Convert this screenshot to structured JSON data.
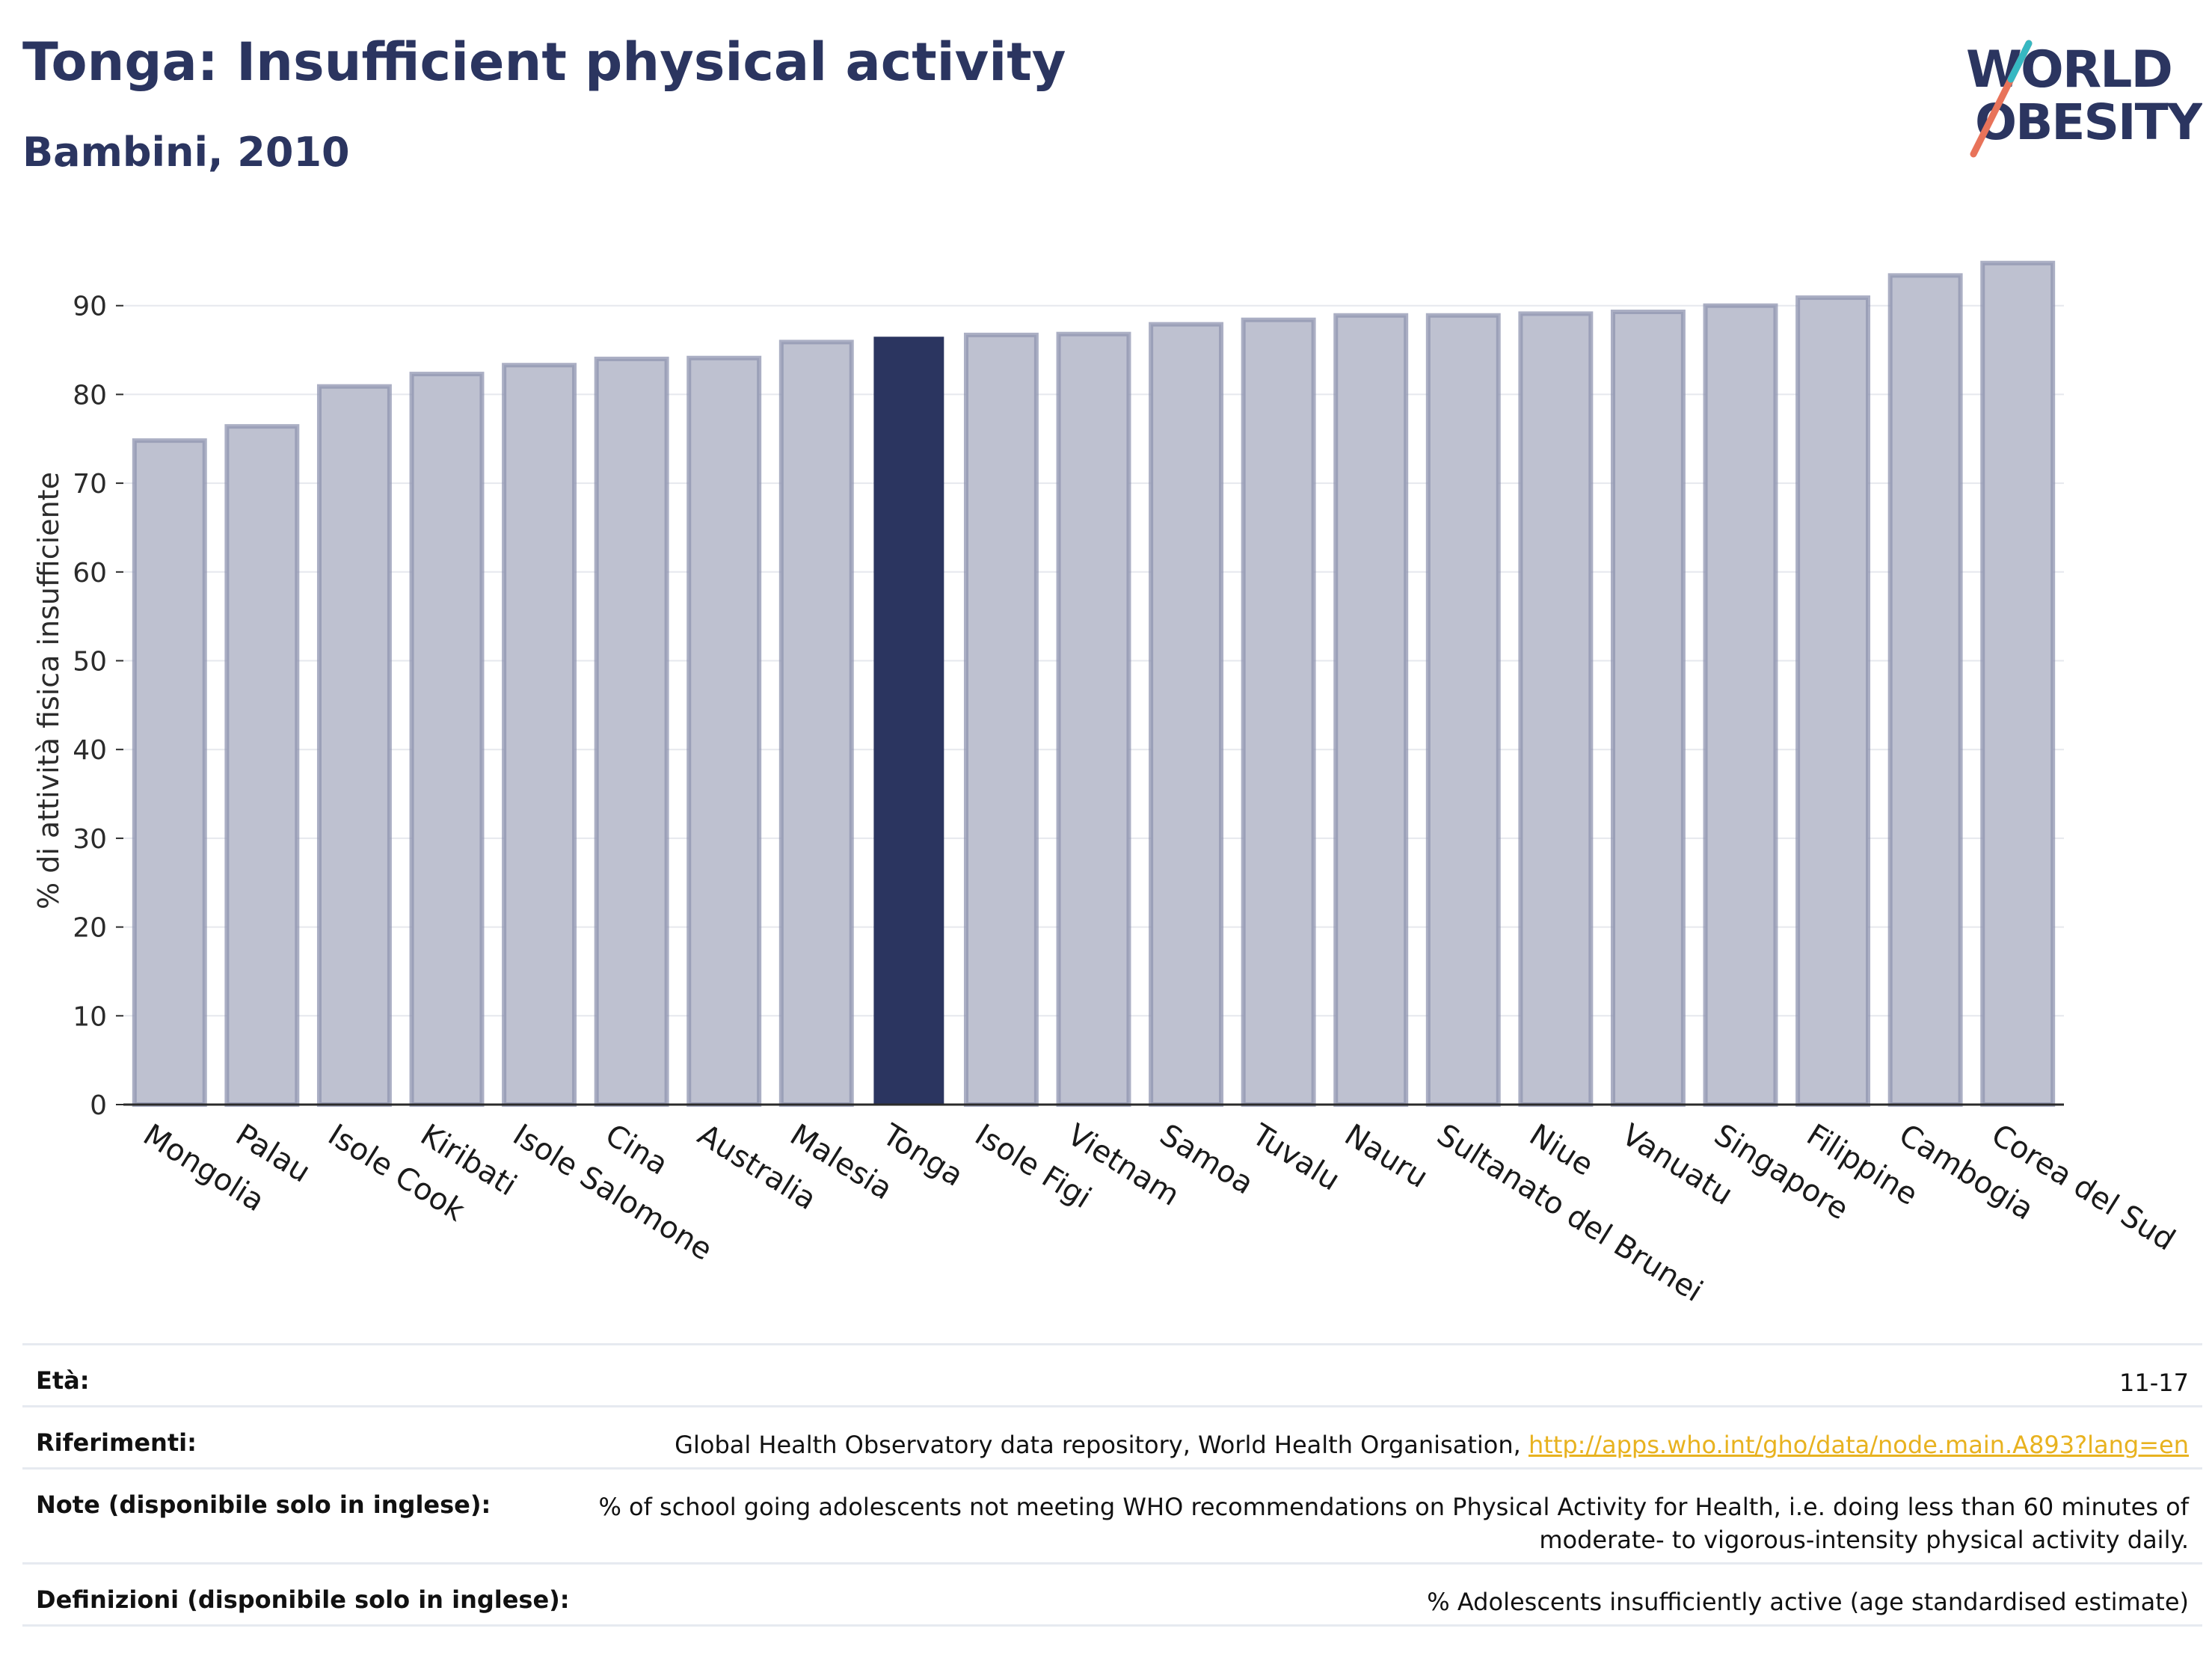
{
  "header": {
    "title": "Tonga: Insufficient physical activity",
    "subtitle": "Bambini, 2010"
  },
  "logo": {
    "line1": "WORLD",
    "line2": "OBESITY",
    "accent_color": "#e8735a",
    "accent_color2": "#36b8c2"
  },
  "colors": {
    "highlight": "#2b3560",
    "bar": "#bec1d0",
    "bar_edge": "#8f94b0",
    "grid": "#e6e8ee",
    "axis": "#2b2b2b",
    "text": "#2b3560"
  },
  "chart_data": {
    "type": "bar",
    "ylabel": "% di attività fisica insufficiente",
    "ylim": [
      0,
      100
    ],
    "yticks": [
      0,
      10,
      20,
      30,
      40,
      50,
      60,
      70,
      80,
      90
    ],
    "highlight": "Tonga",
    "categories": [
      "Mongolia",
      "Palau",
      "Isole Cook",
      "Kiribati",
      "Isole Salomone",
      "Cina",
      "Australia",
      "Malesia",
      "Tonga",
      "Isole Figi",
      "Vietnam",
      "Samoa",
      "Tuvalu",
      "Nauru",
      "Sultanato del Brunei",
      "Niue",
      "Vanuatu",
      "Singapore",
      "Filippine",
      "Cambogia",
      "Corea del Sud"
    ],
    "values": [
      74.8,
      76.4,
      80.9,
      82.3,
      83.3,
      84.0,
      84.1,
      85.9,
      86.5,
      86.7,
      86.8,
      87.9,
      88.4,
      88.9,
      88.9,
      89.1,
      89.3,
      90.0,
      90.9,
      93.4,
      94.8
    ],
    "grid": true
  },
  "meta": {
    "age": {
      "label": "Età:",
      "value": "11-17"
    },
    "references": {
      "label": "Riferimenti:",
      "value": "Global Health Observatory data repository, World Health Organisation, ",
      "link": "http://apps.who.int/gho/data/node.main.A893?lang=en"
    },
    "notes": {
      "label": "Note (disponibile solo in inglese):",
      "line1": "% of school going adolescents not meeting WHO recommendations on Physical Activity for Health, i.e. doing less than 60 minutes of",
      "line2": "moderate- to vigorous-intensity physical activity daily."
    },
    "definitions": {
      "label": "Definizioni (disponibile solo in inglese):",
      "value": "% Adolescents insufficiently active (age standardised estimate)"
    }
  }
}
